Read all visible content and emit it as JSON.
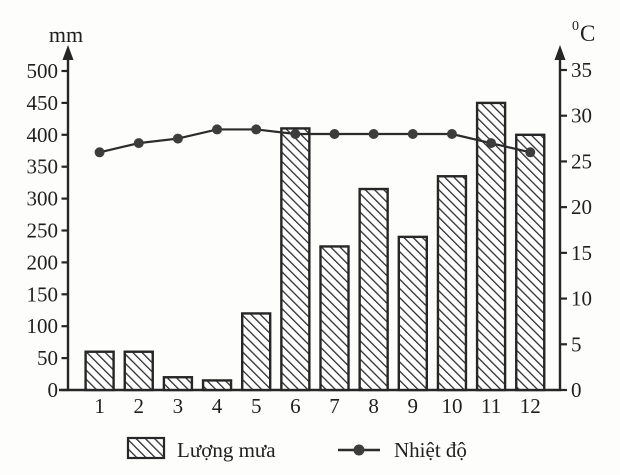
{
  "chart_data": {
    "type": "bar+line",
    "subtype": "climograph",
    "categories": [
      "1",
      "2",
      "3",
      "4",
      "5",
      "6",
      "7",
      "8",
      "9",
      "10",
      "11",
      "12"
    ],
    "series": [
      {
        "name": "Lượng mưa",
        "type": "bar",
        "axis": "left",
        "unit": "mm",
        "values": [
          60,
          60,
          20,
          15,
          120,
          410,
          225,
          315,
          240,
          335,
          450,
          400
        ]
      },
      {
        "name": "Nhiệt độ",
        "type": "line",
        "axis": "right",
        "unit": "°C",
        "values": [
          26,
          27,
          27.5,
          28.5,
          28.5,
          28,
          28,
          28,
          28,
          28,
          27,
          26
        ]
      }
    ],
    "left_axis": {
      "unit": "mm",
      "min": 0,
      "max": 500,
      "ticks": [
        0,
        50,
        100,
        150,
        200,
        250,
        300,
        350,
        400,
        450,
        500
      ]
    },
    "right_axis": {
      "unit": "⁰C",
      "unit_sup": "0",
      "unit_base": "C",
      "min": 0,
      "max": 35,
      "ticks": [
        0,
        5,
        10,
        15,
        20,
        25,
        30,
        35
      ]
    },
    "x_axis": {
      "labels": [
        "1",
        "2",
        "3",
        "4",
        "5",
        "6",
        "7",
        "8",
        "9",
        "10",
        "11",
        "12"
      ]
    },
    "legend": [
      {
        "label": "Lượng mưa",
        "swatch": "hatched-box"
      },
      {
        "label": "Nhiệt độ",
        "swatch": "line-dot"
      }
    ],
    "grid": false,
    "legend_position": "bottom",
    "colors": {
      "ink": "#262626",
      "marker": "#3d3d3d",
      "hatch": "#2e2e2e",
      "bar_fill": "#ffffff",
      "background": "#fdfdfb"
    }
  }
}
